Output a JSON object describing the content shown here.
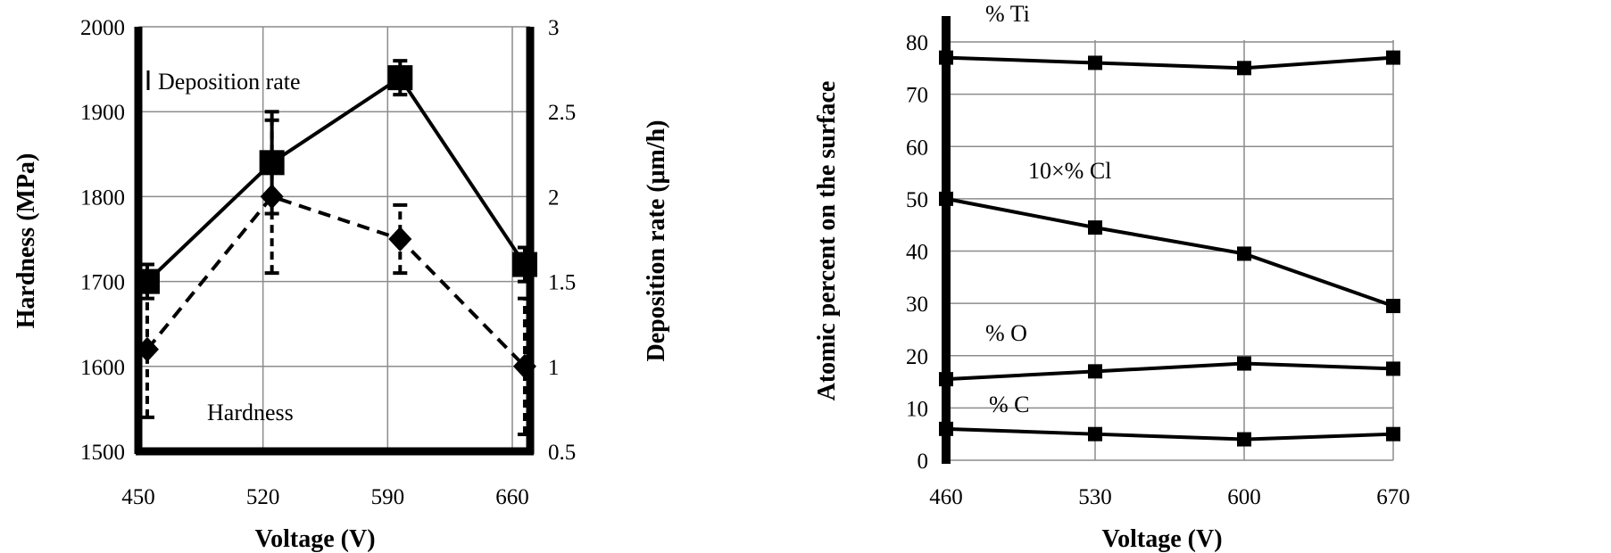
{
  "chart_data": [
    {
      "type": "line",
      "title": "",
      "xlabel": "Voltage (V)",
      "ylabel": "Hardness (MPa)",
      "y2label": "Deposition rate (μm/h)",
      "x_ticks": [
        "450",
        "520",
        "590",
        "660"
      ],
      "y_ticks": [
        "1500",
        "1600",
        "1700",
        "1800",
        "1900",
        "2000"
      ],
      "y2_ticks": [
        "0.5",
        "1",
        "1.5",
        "2",
        "2.5",
        "3"
      ],
      "xlim": [
        450,
        680
      ],
      "ylim": [
        1500,
        2000
      ],
      "y2lim": [
        0.5,
        3
      ],
      "grid": true,
      "series": [
        {
          "name": "Deposition rate",
          "axis": "right",
          "marker": "square",
          "style": "solid",
          "x": [
            455,
            525,
            597,
            667
          ],
          "y": [
            1.5,
            2.2,
            2.7,
            1.6
          ],
          "err": [
            0.1,
            0.3,
            0.1,
            0.1
          ]
        },
        {
          "name": "Hardness",
          "axis": "left",
          "marker": "diamond",
          "style": "dashed",
          "x": [
            455,
            525,
            597,
            667
          ],
          "y": [
            1620,
            1800,
            1750,
            1600
          ],
          "err": [
            80,
            90,
            40,
            80
          ]
        }
      ]
    },
    {
      "type": "line",
      "title": "",
      "xlabel": "Voltage (V)",
      "ylabel": "Atomic percent on the surface",
      "x_ticks": [
        "460",
        "530",
        "600",
        "670"
      ],
      "y_ticks": [
        "0",
        "10",
        "20",
        "30",
        "40",
        "50",
        "60",
        "70",
        "80"
      ],
      "xlim": [
        460,
        670
      ],
      "ylim": [
        0,
        80
      ],
      "grid": true,
      "series": [
        {
          "name": "% Ti",
          "marker": "square",
          "x": [
            460,
            530,
            600,
            670
          ],
          "y": [
            77,
            76,
            75,
            77
          ]
        },
        {
          "name": "10×% Cl",
          "marker": "square",
          "x": [
            460,
            530,
            600,
            670
          ],
          "y": [
            50,
            44.5,
            39.5,
            29.5
          ]
        },
        {
          "name": "% O",
          "marker": "square",
          "x": [
            460,
            530,
            600,
            670
          ],
          "y": [
            15.5,
            17,
            18.5,
            17.5
          ]
        },
        {
          "name": "% C",
          "marker": "square",
          "x": [
            460,
            530,
            600,
            670
          ],
          "y": [
            6,
            5,
            4,
            5
          ]
        }
      ]
    }
  ]
}
